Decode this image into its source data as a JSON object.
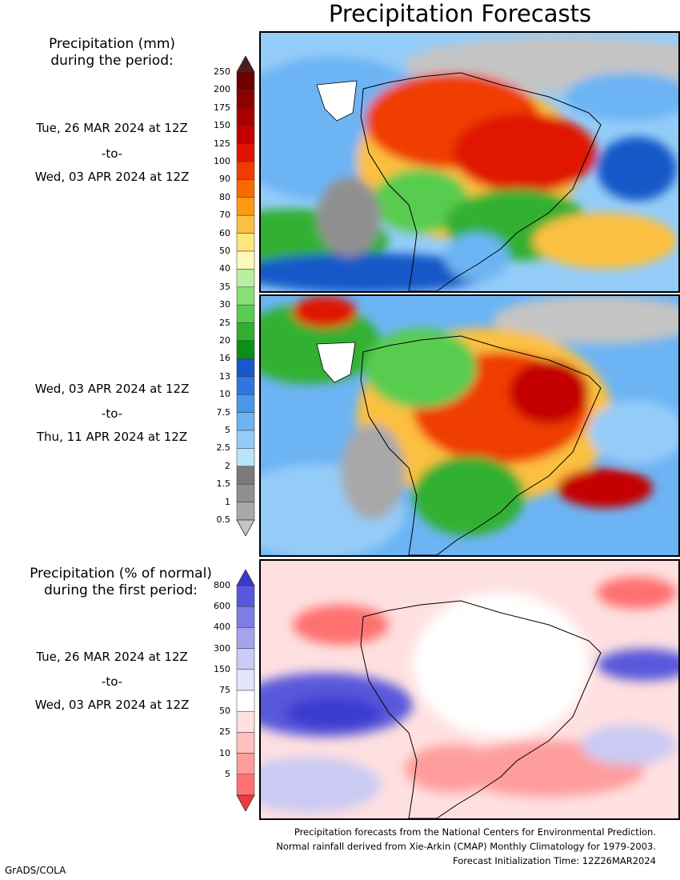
{
  "title": "Precipitation Forecasts",
  "precip_header": [
    "Precipitation (mm)",
    "during the period:"
  ],
  "period1": {
    "start": "Tue, 26 MAR 2024 at 12Z",
    "sep": "-to-",
    "end": "Wed, 03 APR 2024 at 12Z"
  },
  "period2": {
    "start": "Wed, 03 APR 2024 at 12Z",
    "sep": "-to-",
    "end": "Thu, 11 APR 2024 at 12Z"
  },
  "pct_header": [
    "Precipitation (% of normal)",
    "during the first period:"
  ],
  "period3": {
    "start": "Tue, 26 MAR 2024 at 12Z",
    "sep": "-to-",
    "end": "Wed, 03 APR 2024 at 12Z"
  },
  "mm_scale": {
    "ticks": [
      "250",
      "200",
      "175",
      "150",
      "125",
      "100",
      "90",
      "80",
      "70",
      "60",
      "50",
      "40",
      "35",
      "30",
      "25",
      "20",
      "16",
      "13",
      "10",
      "7.5",
      "5",
      "2.5",
      "2",
      "1.5",
      "1",
      "0.5"
    ],
    "colors": [
      "#4a1f1a",
      "#6e0000",
      "#8c0000",
      "#a80000",
      "#c40000",
      "#e01400",
      "#f03c00",
      "#f86a00",
      "#fc9a10",
      "#fcc040",
      "#fde77a",
      "#fdf8b8",
      "#b8f0a0",
      "#88e078",
      "#58cc50",
      "#30b030",
      "#0a9018",
      "#1858c8",
      "#2c78e0",
      "#4898ec",
      "#6cb4f4",
      "#94ccf8",
      "#b8e4fc",
      "#7a7a7a",
      "#909090",
      "#a8a8a8",
      "#c4c4c4"
    ]
  },
  "pct_scale": {
    "ticks": [
      "800",
      "600",
      "400",
      "300",
      "150",
      "75",
      "50",
      "25",
      "10",
      "5"
    ],
    "colors": [
      "#3a3ad0",
      "#5858dc",
      "#7e7ee4",
      "#a4a4ec",
      "#cacaf4",
      "#e4e4fa",
      "#ffffff",
      "#ffe0e0",
      "#ffc0c0",
      "#ff9c9c",
      "#ff7070",
      "#ee3a3a"
    ]
  },
  "footer": [
    "Precipitation forecasts from the National Centers for Environmental Prediction.",
    "Normal rainfall derived from Xie-Arkin (CMAP) Monthly Climatology for 1979-2003.",
    "Forecast Initialization Time: 12Z26MAR2024"
  ],
  "credit": "GrADS/COLA"
}
